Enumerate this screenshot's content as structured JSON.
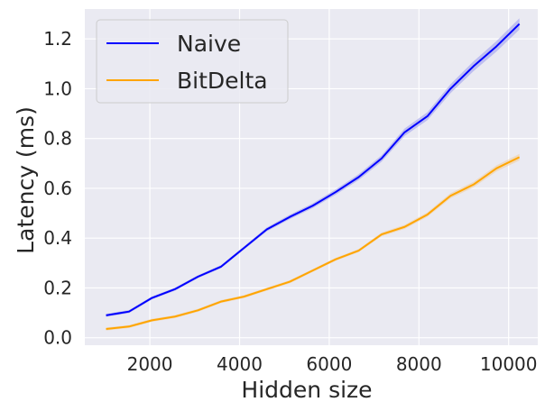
{
  "chart_data": {
    "type": "line",
    "xlabel": "Hidden size",
    "ylabel": "Latency (ms)",
    "xlim": [
      550,
      10650
    ],
    "ylim": [
      -0.03,
      1.32
    ],
    "xticks": [
      2000,
      4000,
      6000,
      8000,
      10000
    ],
    "xtick_labels": [
      "2000",
      "4000",
      "6000",
      "8000",
      "10000"
    ],
    "yticks": [
      0.0,
      0.2,
      0.4,
      0.6,
      0.8,
      1.0,
      1.2
    ],
    "ytick_labels": [
      "0.0",
      "0.2",
      "0.4",
      "0.6",
      "0.8",
      "1.0",
      "1.2"
    ],
    "grid": true,
    "legend_position": "top-left",
    "x": [
      1024,
      1536,
      2048,
      2560,
      3072,
      3584,
      4096,
      4608,
      5120,
      5632,
      6144,
      6656,
      7168,
      7680,
      8192,
      8704,
      9216,
      9728,
      10240
    ],
    "series": [
      {
        "name": "Naive",
        "color": "#0000ff",
        "band_color": "#9999ee",
        "values": [
          0.09,
          0.105,
          0.16,
          0.195,
          0.245,
          0.285,
          0.36,
          0.435,
          0.485,
          0.53,
          0.585,
          0.645,
          0.72,
          0.825,
          0.89,
          1.0,
          1.09,
          1.17,
          1.26
        ]
      },
      {
        "name": "BitDelta",
        "color": "#ffa500",
        "band_color": "#f0cc9a",
        "values": [
          0.035,
          0.045,
          0.07,
          0.085,
          0.11,
          0.145,
          0.165,
          0.195,
          0.225,
          0.27,
          0.315,
          0.35,
          0.415,
          0.445,
          0.495,
          0.57,
          0.615,
          0.68,
          0.725
        ]
      }
    ]
  }
}
